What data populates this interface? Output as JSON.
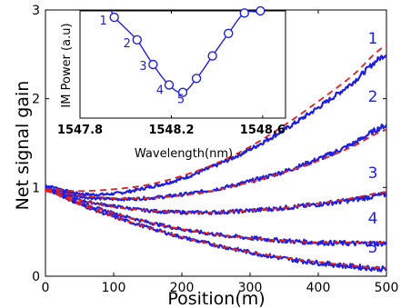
{
  "chart_data": [
    {
      "type": "line",
      "xlabel": "Position(m)",
      "ylabel": "Net signal gain",
      "xlim": [
        0,
        500
      ],
      "ylim": [
        0,
        3
      ],
      "xticks": [
        "0",
        "100",
        "200",
        "300",
        "400",
        "500"
      ],
      "yticks": [
        "0",
        "1",
        "2",
        "3"
      ],
      "grid": false,
      "legend": "none",
      "series": [
        {
          "name": "1",
          "style": "measured",
          "color": "#1f1fe0",
          "x": [
            0,
            50,
            100,
            150,
            200,
            250,
            300,
            350,
            400,
            450,
            500
          ],
          "y": [
            1.02,
            0.93,
            0.93,
            1.0,
            1.1,
            1.25,
            1.43,
            1.65,
            1.9,
            2.18,
            2.5
          ]
        },
        {
          "name": "1",
          "style": "fit",
          "color": "#e02020",
          "x": [
            0,
            50,
            100,
            150,
            200,
            250,
            300,
            350,
            400,
            450,
            500
          ],
          "y": [
            0.98,
            0.96,
            0.98,
            1.03,
            1.13,
            1.27,
            1.46,
            1.7,
            1.97,
            2.26,
            2.6
          ]
        },
        {
          "name": "2",
          "style": "measured",
          "color": "#1f1fe0",
          "x": [
            0,
            50,
            100,
            150,
            200,
            250,
            300,
            350,
            400,
            450,
            500
          ],
          "y": [
            1.0,
            0.9,
            0.87,
            0.88,
            0.92,
            0.98,
            1.07,
            1.18,
            1.32,
            1.49,
            1.7
          ]
        },
        {
          "name": "2",
          "style": "fit",
          "color": "#e02020",
          "x": [
            0,
            50,
            100,
            150,
            200,
            250,
            300,
            350,
            400,
            450,
            500
          ],
          "y": [
            0.97,
            0.91,
            0.88,
            0.88,
            0.91,
            0.97,
            1.06,
            1.17,
            1.3,
            1.46,
            1.65
          ]
        },
        {
          "name": "3",
          "style": "measured",
          "color": "#1f1fe0",
          "x": [
            0,
            50,
            100,
            150,
            200,
            250,
            300,
            350,
            400,
            450,
            500
          ],
          "y": [
            0.99,
            0.86,
            0.79,
            0.74,
            0.72,
            0.72,
            0.74,
            0.77,
            0.81,
            0.86,
            0.92
          ]
        },
        {
          "name": "3",
          "style": "fit",
          "color": "#e02020",
          "x": [
            0,
            50,
            100,
            150,
            200,
            250,
            300,
            350,
            400,
            450,
            500
          ],
          "y": [
            0.96,
            0.86,
            0.78,
            0.74,
            0.72,
            0.72,
            0.74,
            0.77,
            0.82,
            0.88,
            0.95
          ]
        },
        {
          "name": "4",
          "style": "measured",
          "color": "#1f1fe0",
          "x": [
            0,
            50,
            100,
            150,
            200,
            250,
            300,
            350,
            400,
            450,
            500
          ],
          "y": [
            0.97,
            0.83,
            0.71,
            0.61,
            0.53,
            0.47,
            0.43,
            0.4,
            0.38,
            0.37,
            0.37
          ]
        },
        {
          "name": "4",
          "style": "fit",
          "color": "#e02020",
          "x": [
            0,
            50,
            100,
            150,
            200,
            250,
            300,
            350,
            400,
            450,
            500
          ],
          "y": [
            0.96,
            0.83,
            0.71,
            0.61,
            0.53,
            0.47,
            0.43,
            0.4,
            0.38,
            0.38,
            0.38
          ]
        },
        {
          "name": "5",
          "style": "measured",
          "color": "#1f1fe0",
          "x": [
            0,
            50,
            100,
            150,
            200,
            250,
            300,
            350,
            400,
            450,
            500
          ],
          "y": [
            0.97,
            0.81,
            0.67,
            0.55,
            0.44,
            0.35,
            0.27,
            0.2,
            0.15,
            0.11,
            0.08
          ]
        },
        {
          "name": "5",
          "style": "fit",
          "color": "#e02020",
          "x": [
            0,
            50,
            100,
            150,
            200,
            250,
            300,
            350,
            400,
            450,
            500
          ],
          "y": [
            0.96,
            0.81,
            0.67,
            0.55,
            0.44,
            0.35,
            0.27,
            0.21,
            0.16,
            0.12,
            0.09
          ]
        }
      ],
      "curve_labels": [
        "1",
        "2",
        "3",
        "4",
        "5"
      ]
    },
    {
      "type": "line",
      "inset": true,
      "xlabel": "Wavelength(nm)",
      "ylabel": "IM Power (a.u)",
      "xticks": [
        "1547.8",
        "1548.2",
        "1548.6"
      ],
      "xlim": [
        1547.8,
        1548.7
      ],
      "ylim": [
        0,
        1
      ],
      "yticks": [],
      "series": [
        {
          "name": "",
          "color": "#1f1fe0",
          "marker": "circle",
          "x": [
            1547.95,
            1548.05,
            1548.12,
            1548.19,
            1548.25,
            1548.31,
            1548.38,
            1548.45,
            1548.52,
            1548.59
          ],
          "y": [
            0.94,
            0.73,
            0.5,
            0.31,
            0.24,
            0.37,
            0.58,
            0.79,
            0.98,
            1.0
          ]
        }
      ],
      "point_labels": [
        "1",
        "2",
        "3",
        "4",
        "5"
      ]
    }
  ]
}
